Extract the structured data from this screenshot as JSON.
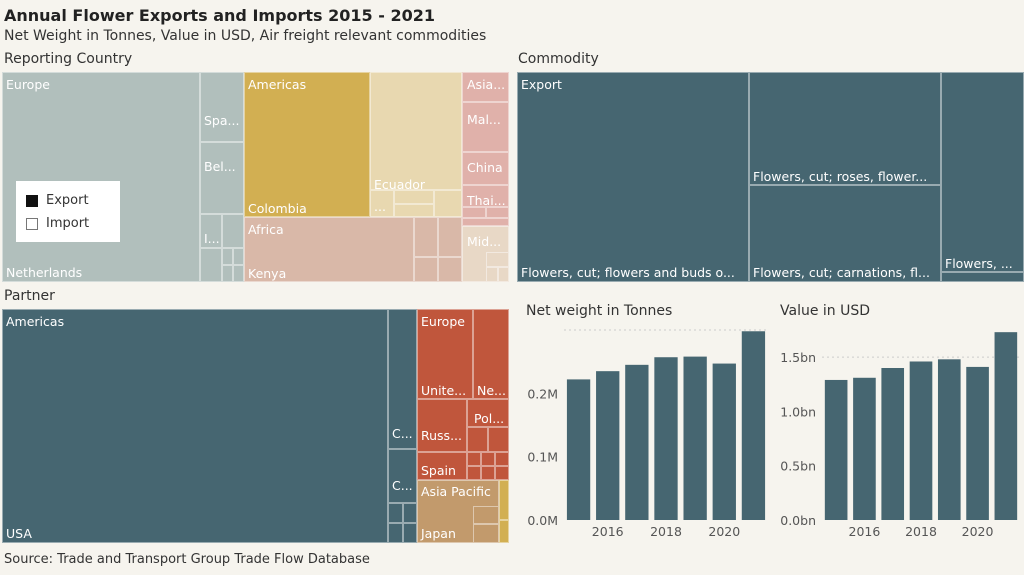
{
  "title": "Annual Flower Exports and Imports 2015 - 2021",
  "subtitle": "Net Weight in Tonnes, Value in USD, Air freight relevant commodities",
  "source": "Source: Trade and Transport Group Trade Flow Database",
  "colors": {
    "europe": "#b1bfbc",
    "americas": "#d2af52",
    "americas_light": "#e8d8b0",
    "africa": "#d9b8a8",
    "asia": "#e0b1aa",
    "dark": "#466671",
    "red": "#c0563c",
    "asia_partner": "#c29a6c",
    "grid": "#cccccc"
  },
  "reporting": {
    "header": "Reporting Country",
    "labels": {
      "europe": "Europe",
      "netherlands": "Netherlands",
      "spain": "Spa...",
      "belgium": "Bel...",
      "italy": "I...",
      "americas": "Americas",
      "colombia": "Colombia",
      "ecuador": "Ecuador",
      "ecuador_more": "...",
      "africa": "Africa",
      "kenya": "Kenya",
      "asia": "Asia...",
      "malaysia": "Mal...",
      "china": "China",
      "thailand": "Thai...",
      "middle_east": "Mid..."
    }
  },
  "legend": {
    "export": "Export",
    "import": "Import"
  },
  "commodity": {
    "header": "Commodity",
    "labels": {
      "export": "Export",
      "c1": "Flowers, cut; flowers and buds o...",
      "c2": "Flowers, cut; roses, flower...",
      "c3": "Flowers, cut; carnations, fl...",
      "c4": "Flowers, ..."
    }
  },
  "partner": {
    "header": "Partner",
    "labels": {
      "americas": "Americas",
      "usa": "USA",
      "c1": "C...",
      "c2": "C...",
      "europe": "Europe",
      "uk": "Unite...",
      "ne": "Ne...",
      "russia": "Russ...",
      "poland": "Pol...",
      "spain": "Spain",
      "asia_pacific": "Asia Pacific",
      "japan": "Japan"
    }
  },
  "chart_data": [
    {
      "type": "bar",
      "title": "Net weight in Tonnes",
      "categories": [
        2015,
        2016,
        2017,
        2018,
        2019,
        2020,
        2021
      ],
      "values": [
        222000,
        235000,
        245000,
        257000,
        258000,
        247000,
        298000
      ],
      "ylim": [
        0,
        300000
      ],
      "yticks": [
        0,
        100000,
        200000
      ],
      "ytick_labels": [
        "0.0M",
        "0.1M",
        "0.2M"
      ],
      "xticks": [
        2016,
        2018,
        2020
      ],
      "xtick_labels": [
        "2016",
        "2018",
        "2020"
      ],
      "gridline": 300000
    },
    {
      "type": "bar",
      "title": "Value in USD",
      "categories": [
        2015,
        2016,
        2017,
        2018,
        2019,
        2020,
        2021
      ],
      "values": [
        1290000000,
        1310000000,
        1400000000,
        1460000000,
        1480000000,
        1410000000,
        1730000000
      ],
      "ylim": [
        0,
        1750000000
      ],
      "yticks": [
        0,
        500000000,
        1000000000,
        1500000000
      ],
      "ytick_labels": [
        "0.0bn",
        "0.5bn",
        "1.0bn",
        "1.5bn"
      ],
      "xticks": [
        2016,
        2018,
        2020
      ],
      "xtick_labels": [
        "2016",
        "2018",
        "2020"
      ],
      "gridline": 1500000000
    }
  ]
}
